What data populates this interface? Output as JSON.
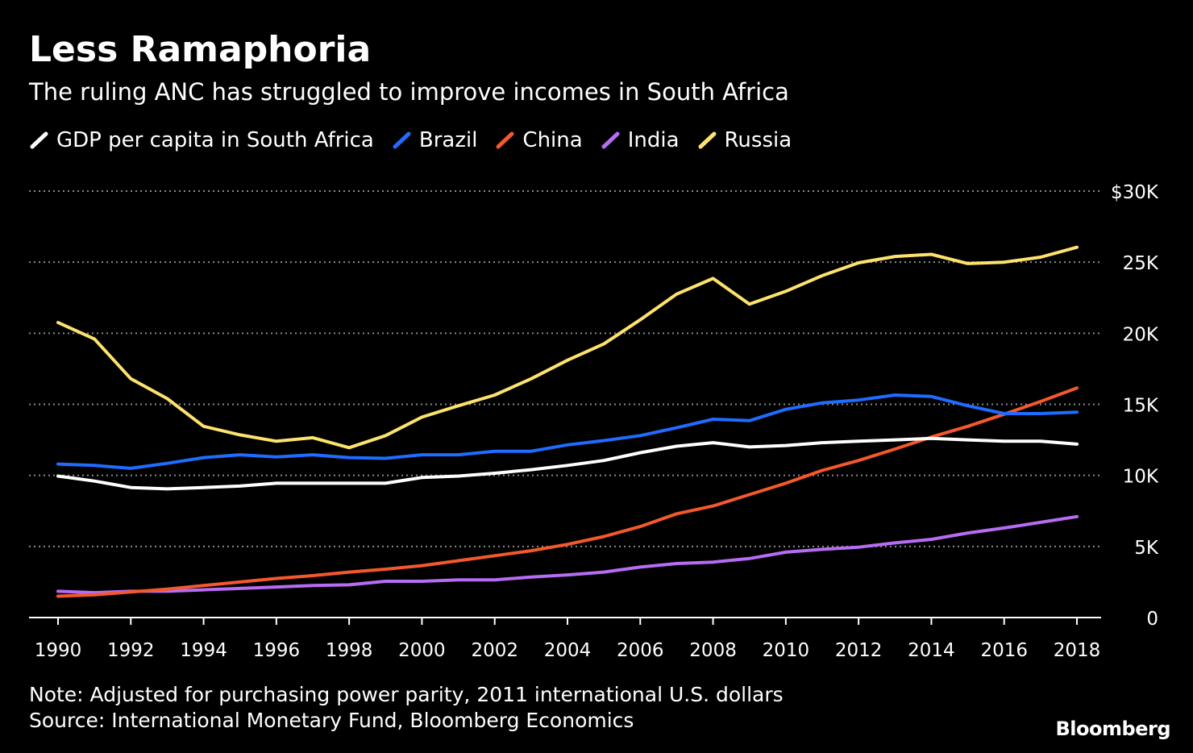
{
  "title": "Less Ramaphoria",
  "subtitle": "The ruling ANC has struggled to improve incomes in South Africa",
  "note": "Note: Adjusted for purchasing power parity, 2011 international U.S. dollars",
  "source": "Source: International Monetary Fund, Bloomberg Economics",
  "brand": "Bloomberg",
  "chart_data": {
    "type": "line",
    "x": [
      1990,
      1991,
      1992,
      1993,
      1994,
      1995,
      1996,
      1997,
      1998,
      1999,
      2000,
      2001,
      2002,
      2003,
      2004,
      2005,
      2006,
      2007,
      2008,
      2009,
      2010,
      2011,
      2012,
      2013,
      2014,
      2015,
      2016,
      2017,
      2018
    ],
    "x_ticks": [
      1990,
      1992,
      1994,
      1996,
      1998,
      2000,
      2002,
      2004,
      2006,
      2008,
      2010,
      2012,
      2014,
      2016,
      2018
    ],
    "x_tick_labels": [
      "1990",
      "1992",
      "1994",
      "1996",
      "1998",
      "2000",
      "2002",
      "2004",
      "2006",
      "2008",
      "2010",
      "2012",
      "2014",
      "2016",
      "2018"
    ],
    "xlim": [
      1989.6,
      1991.0
    ],
    "ylim": [
      0,
      30000
    ],
    "y_ticks": [
      0,
      5000,
      10000,
      15000,
      20000,
      25000,
      30000
    ],
    "y_tick_labels": [
      "0",
      "5K",
      "10K",
      "15K",
      "20K",
      "25K",
      "$30K"
    ],
    "y_axis_side": "right",
    "grid": "horizontal dotted",
    "legend_position": "top-left",
    "series": [
      {
        "name": "GDP per capita in South Africa",
        "color": "#ffffff",
        "values": [
          9950,
          9600,
          9150,
          9050,
          9150,
          9250,
          9450,
          9450,
          9450,
          9450,
          9850,
          9950,
          10150,
          10400,
          10700,
          11050,
          11600,
          12050,
          12300,
          12000,
          12100,
          12300,
          12400,
          12500,
          12600,
          12500,
          12400,
          12400,
          12200
        ]
      },
      {
        "name": "Brazil",
        "color": "#1f6cff",
        "values": [
          10800,
          10700,
          10500,
          10850,
          11250,
          11450,
          11300,
          11450,
          11250,
          11200,
          11450,
          11450,
          11700,
          11700,
          12150,
          12450,
          12800,
          13350,
          13950,
          13850,
          14650,
          15100,
          15300,
          15650,
          15550,
          14900,
          14350,
          14350,
          14450
        ]
      },
      {
        "name": "China",
        "color": "#f4582d",
        "values": [
          1500,
          1600,
          1800,
          2000,
          2250,
          2500,
          2750,
          2950,
          3200,
          3400,
          3650,
          4000,
          4350,
          4700,
          5150,
          5700,
          6400,
          7300,
          7850,
          8650,
          9450,
          10350,
          11050,
          11850,
          12700,
          13450,
          14300,
          15200,
          16150
        ]
      },
      {
        "name": "India",
        "color": "#b76cf4",
        "values": [
          1850,
          1750,
          1850,
          1850,
          1950,
          2050,
          2150,
          2250,
          2300,
          2550,
          2550,
          2650,
          2650,
          2850,
          3000,
          3200,
          3550,
          3800,
          3900,
          4150,
          4600,
          4800,
          4950,
          5250,
          5500,
          5950,
          6300,
          6700,
          7100
        ]
      },
      {
        "name": "Russia",
        "color": "#fde36d",
        "values": [
          20750,
          19600,
          16800,
          15400,
          13450,
          12850,
          12400,
          12650,
          11950,
          12800,
          14100,
          14900,
          15650,
          16800,
          18100,
          19250,
          20950,
          22750,
          23850,
          22050,
          22950,
          24050,
          24950,
          25400,
          25550,
          24900,
          25000,
          25350,
          26050
        ]
      }
    ]
  }
}
